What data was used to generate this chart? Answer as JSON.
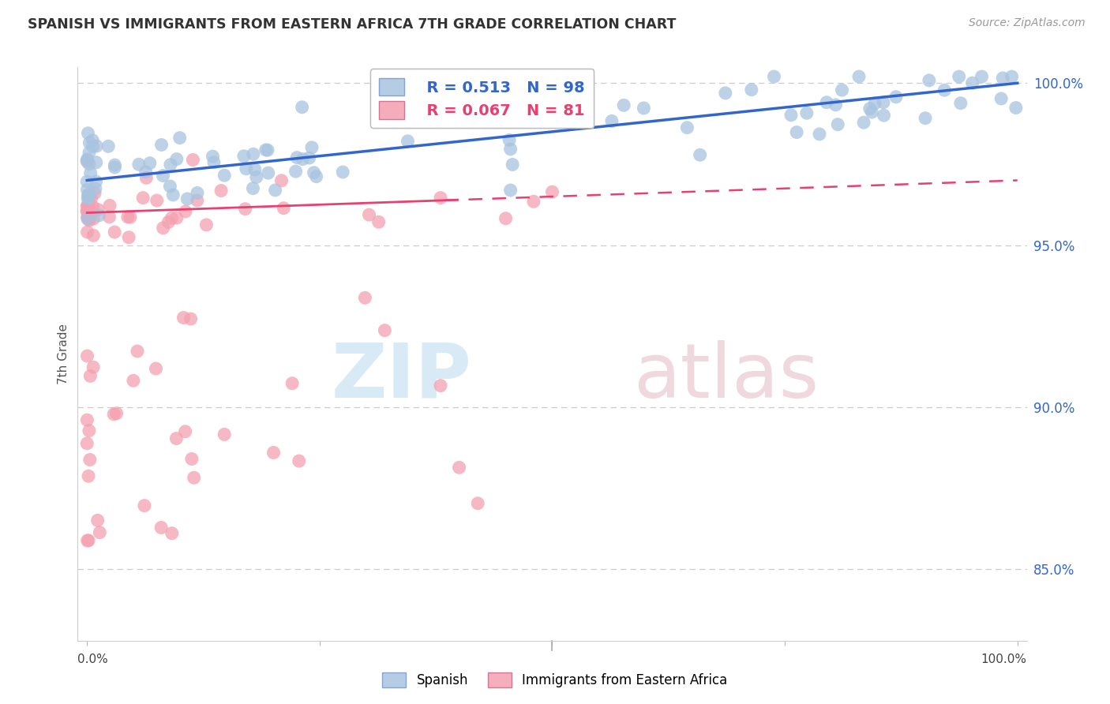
{
  "title": "SPANISH VS IMMIGRANTS FROM EASTERN AFRICA 7TH GRADE CORRELATION CHART",
  "source": "Source: ZipAtlas.com",
  "ylabel": "7th Grade",
  "yticks_labels": [
    "85.0%",
    "90.0%",
    "95.0%",
    "100.0%"
  ],
  "ytick_vals": [
    0.85,
    0.9,
    0.95,
    1.0
  ],
  "legend1_label": "Spanish",
  "legend2_label": "Immigrants from Eastern Africa",
  "r1": 0.513,
  "n1": 98,
  "r2": 0.067,
  "n2": 81,
  "blue_scatter_color": "#A8C4E0",
  "pink_scatter_color": "#F4A0B0",
  "blue_line_color": "#3366CC",
  "pink_line_color": "#E84070",
  "watermark_zip_color": "#D8EAF6",
  "watermark_atlas_color": "#F0D8DF",
  "xlim": [
    -0.01,
    1.01
  ],
  "ylim": [
    0.828,
    1.005
  ],
  "bg_color": "#FFFFFF",
  "grid_color": "#DDDDDD",
  "tick_color": "#3366CC",
  "title_color": "#333333",
  "source_color": "#999999",
  "axis_label_color": "#555555"
}
